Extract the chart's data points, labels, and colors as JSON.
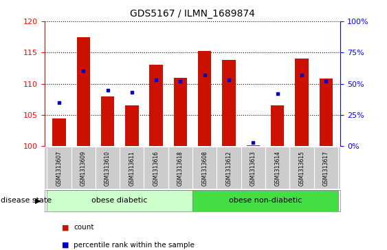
{
  "title": "GDS5167 / ILMN_1689874",
  "samples": [
    "GSM1313607",
    "GSM1313609",
    "GSM1313610",
    "GSM1313611",
    "GSM1313616",
    "GSM1313618",
    "GSM1313608",
    "GSM1313612",
    "GSM1313613",
    "GSM1313614",
    "GSM1313615",
    "GSM1313617"
  ],
  "bar_values": [
    104.5,
    117.5,
    108.0,
    106.5,
    113.0,
    111.0,
    115.3,
    113.8,
    100.2,
    106.5,
    114.0,
    110.8
  ],
  "bar_baseline": 100,
  "percentile_values": [
    35,
    60,
    45,
    43,
    53,
    52,
    57,
    53,
    3,
    42,
    57,
    52
  ],
  "bar_color": "#cc1100",
  "dot_color": "#0000cc",
  "ylim_left": [
    100,
    120
  ],
  "ylim_right": [
    0,
    100
  ],
  "yticks_left": [
    100,
    105,
    110,
    115,
    120
  ],
  "yticks_right": [
    0,
    25,
    50,
    75,
    100
  ],
  "ytick_labels_right": [
    "0%",
    "25%",
    "50%",
    "75%",
    "100%"
  ],
  "group1_label": "obese diabetic",
  "group2_label": "obese non-diabetic",
  "group1_count": 6,
  "group2_count": 6,
  "disease_state_label": "disease state",
  "legend_count_label": "count",
  "legend_percentile_label": "percentile rank within the sample",
  "group1_color": "#ccffcc",
  "group2_color": "#44dd44",
  "xticklabel_area_color": "#cccccc",
  "bg_color": "#ffffff"
}
